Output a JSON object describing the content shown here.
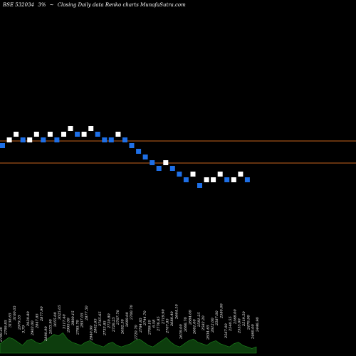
{
  "header": {
    "symbol": "BSE 532034",
    "pct": "3%",
    "arrow": "~",
    "title": "Closing Daily data  Renko  charts MunafaSutra.com"
  },
  "colors": {
    "background": "#000000",
    "up_brick": "#ffffff",
    "down_brick": "#1e6fe6",
    "reference_line": "#c8641e",
    "volume_fill": "#0d3d0d",
    "volume_stroke": "#1e8c1e"
  },
  "chart_data": {
    "type": "renko",
    "title": "Closing Daily data  Renko  charts MunafaSutra.com",
    "brick_levels": [
      0,
      1,
      2,
      1,
      1,
      2,
      1,
      2,
      1,
      2,
      3,
      2,
      2,
      3,
      2,
      1,
      1,
      2,
      1,
      0,
      -1,
      -2,
      -3,
      -4,
      -3,
      -4,
      -5,
      -6,
      -5,
      -7,
      -6,
      -6,
      -5,
      -6,
      -6,
      -5,
      -6
    ],
    "brick_directions": [
      "down",
      "up",
      "up",
      "down",
      "up",
      "up",
      "down",
      "up",
      "down",
      "up",
      "up",
      "down",
      "up",
      "up",
      "down",
      "down",
      "down",
      "up",
      "down",
      "down",
      "down",
      "down",
      "down",
      "down",
      "up",
      "down",
      "down",
      "down",
      "up",
      "down",
      "up",
      "up",
      "up",
      "down",
      "up",
      "up",
      "down"
    ],
    "reference_lines": [
      "upper",
      "lower"
    ],
    "volume_labels": [
      "2790.20",
      "2799.85",
      "3158.65",
      "3100.05",
      "2979.55",
      "3,79",
      "2939.80",
      "2903.00",
      "2847.85",
      "2877.90",
      "2890.90",
      "2933.90",
      "3055.00",
      "3025.05",
      "3117.40",
      "2995.00",
      "2800.15",
      "2785.70",
      "2857.05",
      "2877.50",
      "2840.00",
      "2802.65",
      "2765.65",
      "2733.85",
      "2720.80",
      "2726.25",
      "2707.70",
      "2692.30",
      "2689.00",
      "2700.70",
      "2720.70",
      "2784.85",
      "2744.70",
      "2709.10",
      "6.58",
      "2776.85",
      "2719.90",
      "2707.85",
      "2688.40",
      "2664.10",
      "2639.00",
      "2666.70",
      "2684.00",
      "2661.00",
      "2581.25",
      "2582.20",
      "2634.65",
      "2612.00",
      "2587.00",
      "2580.00",
      "2567.00",
      "2540.55",
      "2568.00",
      "2555.60",
      "2519.50",
      "2470.90",
      "2460.00",
      "2446.90"
    ],
    "volume_values": [
      6,
      8,
      10,
      9,
      7,
      5,
      8,
      9,
      7,
      6,
      8,
      10,
      12,
      11,
      13,
      9,
      7,
      6,
      5,
      7,
      8,
      6,
      5,
      4,
      6,
      7,
      5,
      4,
      5,
      6,
      8,
      9,
      7,
      5,
      4,
      6,
      8,
      10,
      7,
      5,
      4,
      6,
      8,
      9,
      7,
      6,
      5,
      7,
      8,
      6,
      5,
      4,
      6,
      7,
      5,
      4,
      3,
      4
    ]
  }
}
